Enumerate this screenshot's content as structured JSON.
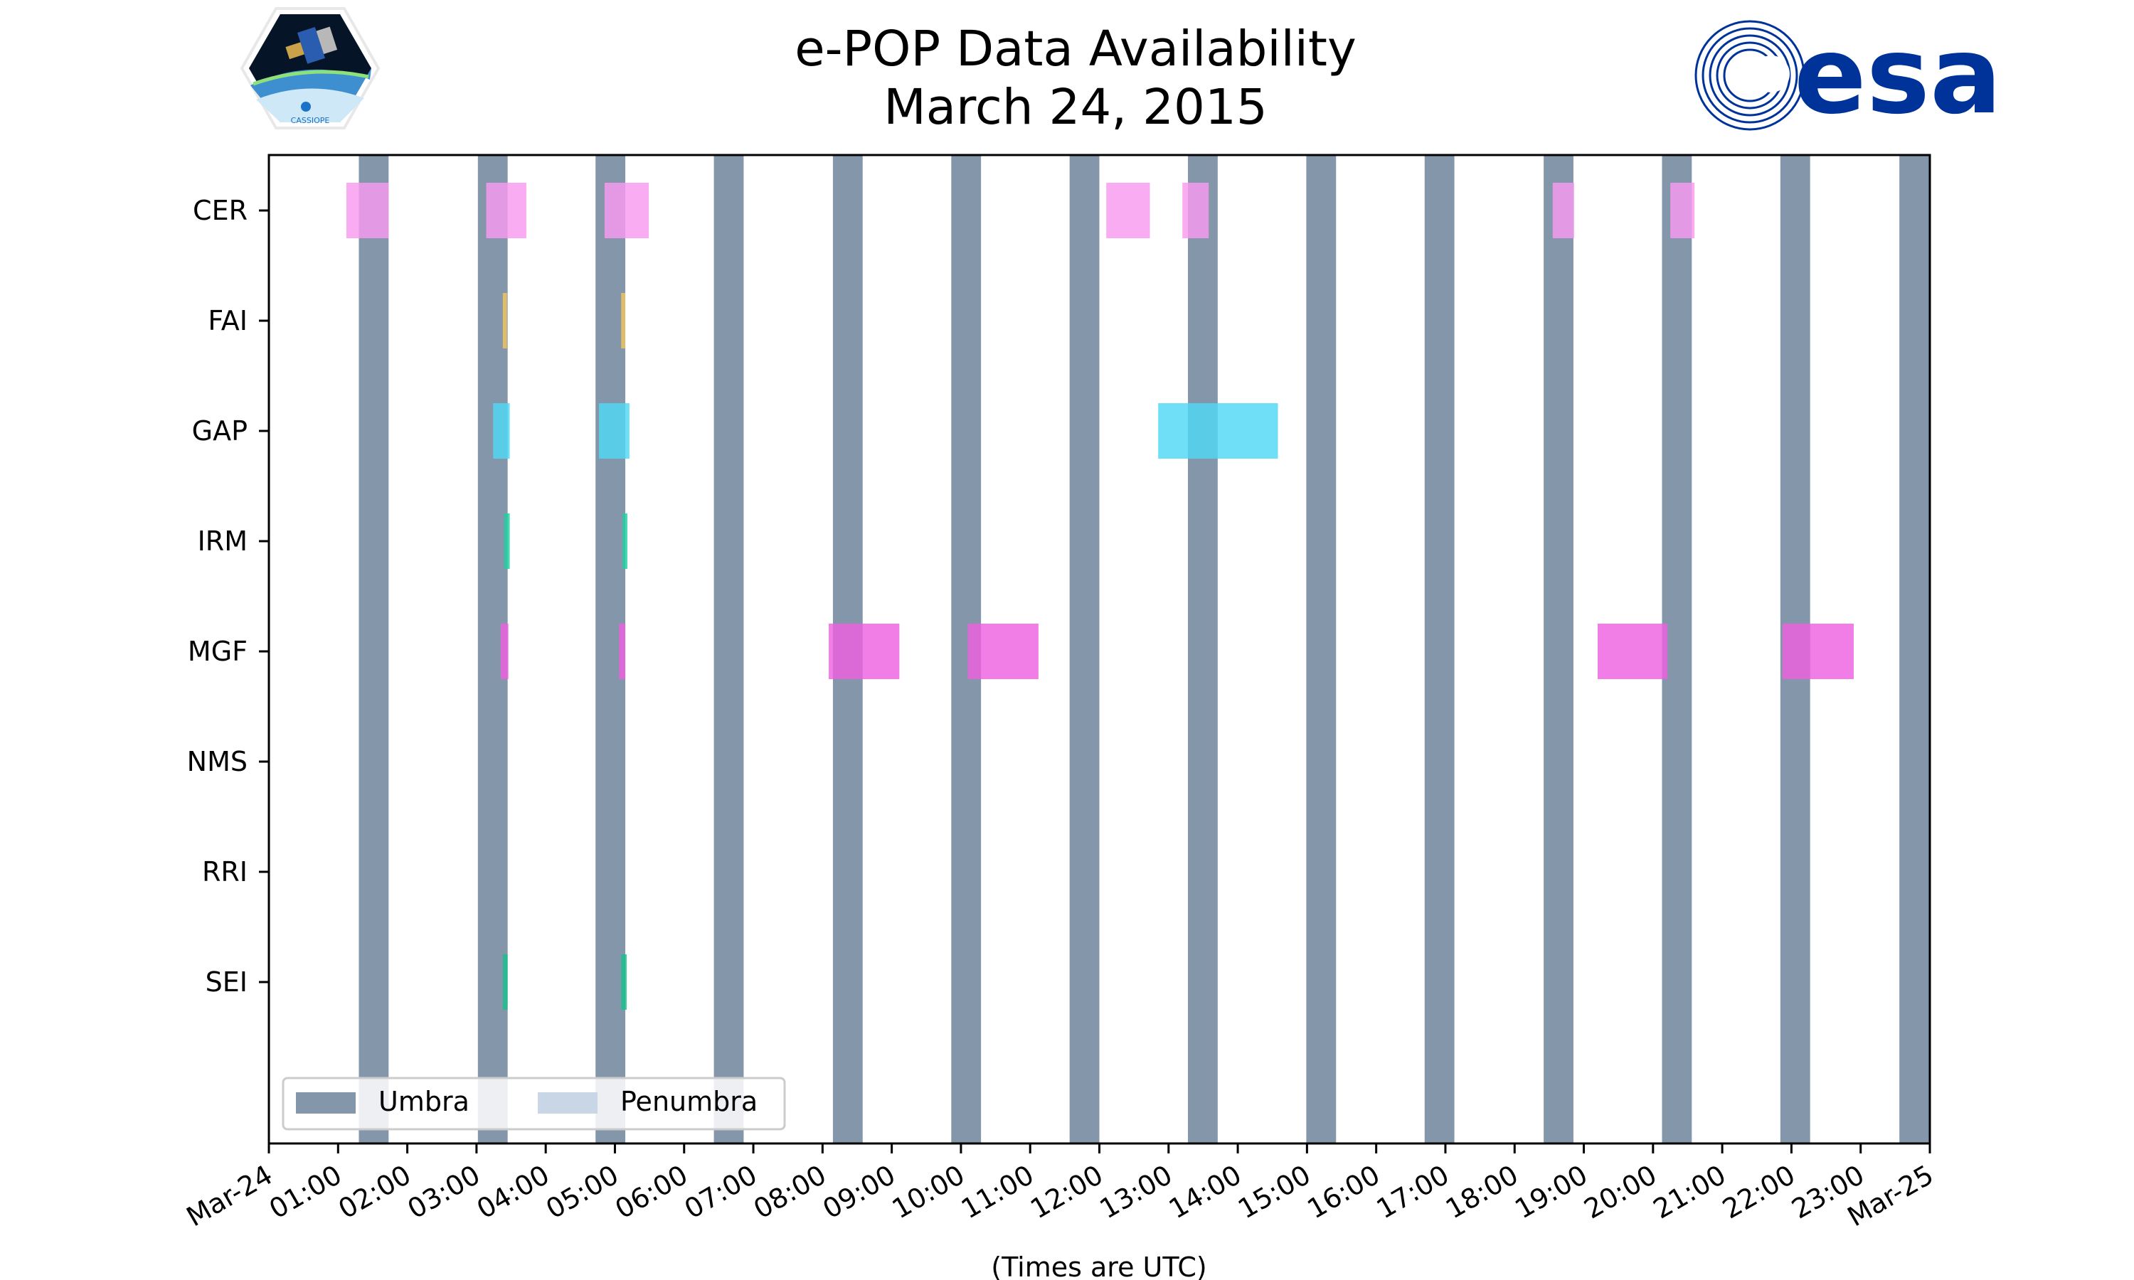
{
  "title_line1": "e-POP Data Availability",
  "title_line2": "March 24, 2015",
  "logos": {
    "left_badge_text": "CASSIOPE",
    "right_wordmark": "esa"
  },
  "chart_data": {
    "type": "timeline",
    "title": "e-POP Data Availability\nMarch 24, 2015",
    "xlabel": "(Times are UTC)",
    "xlim_hours": [
      0,
      24
    ],
    "xtick_labels": [
      "Mar-24",
      "01:00",
      "02:00",
      "03:00",
      "04:00",
      "05:00",
      "06:00",
      "07:00",
      "08:00",
      "09:00",
      "10:00",
      "11:00",
      "12:00",
      "13:00",
      "14:00",
      "15:00",
      "16:00",
      "17:00",
      "18:00",
      "19:00",
      "20:00",
      "21:00",
      "22:00",
      "23:00",
      "Mar-25"
    ],
    "instruments": [
      "CER",
      "FAI",
      "GAP",
      "IRM",
      "MGF",
      "NMS",
      "RRI",
      "SEI"
    ],
    "colors": {
      "umbra": "#8496a9",
      "penumbra": "#c8d6e6",
      "CER": "#f99af0",
      "FAI": "#f3c45c",
      "GAP": "#4fd8f5",
      "IRM": "#1fd0a0",
      "MGF": "#ee60e0",
      "SEI": "#1abf8f"
    },
    "umbra_intervals_hours": [
      [
        1.3,
        1.73
      ],
      [
        3.02,
        3.45
      ],
      [
        4.72,
        5.15
      ],
      [
        6.43,
        6.86
      ],
      [
        8.15,
        8.58
      ],
      [
        9.86,
        10.29
      ],
      [
        11.57,
        12.0
      ],
      [
        13.28,
        13.71
      ],
      [
        14.99,
        15.42
      ],
      [
        16.7,
        17.13
      ],
      [
        18.42,
        18.85
      ],
      [
        20.13,
        20.56
      ],
      [
        21.84,
        22.27
      ],
      [
        23.56,
        23.99
      ]
    ],
    "data_intervals_hours": {
      "CER": [
        [
          1.12,
          1.73
        ],
        [
          3.14,
          3.72
        ],
        [
          4.85,
          5.49
        ],
        [
          12.1,
          12.73
        ],
        [
          13.2,
          13.58
        ],
        [
          18.55,
          18.86
        ],
        [
          20.25,
          20.6
        ]
      ],
      "FAI": [
        [
          3.38,
          3.44
        ],
        [
          5.09,
          5.15
        ]
      ],
      "GAP": [
        [
          3.24,
          3.48
        ],
        [
          4.77,
          5.21
        ],
        [
          12.85,
          14.58
        ]
      ],
      "IRM": [
        [
          3.4,
          3.48
        ],
        [
          5.11,
          5.18
        ]
      ],
      "MGF": [
        [
          3.35,
          3.46
        ],
        [
          5.06,
          5.15
        ],
        [
          8.09,
          9.11
        ],
        [
          10.1,
          11.12
        ],
        [
          19.2,
          20.21
        ],
        [
          21.87,
          22.9
        ]
      ],
      "NMS": [],
      "RRI": [],
      "SEI": [
        [
          3.38,
          3.45
        ],
        [
          5.09,
          5.17
        ]
      ]
    },
    "legend": {
      "items": [
        "Umbra",
        "Penumbra"
      ],
      "placement": "lower-left",
      "ncol": 2
    }
  }
}
